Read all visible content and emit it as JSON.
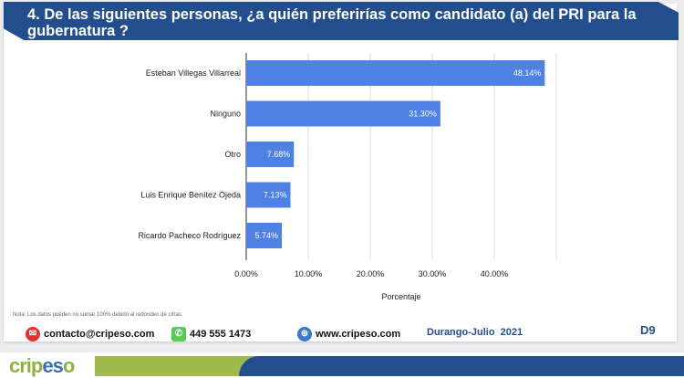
{
  "header": {
    "title": "4. De las siguientes personas, ¿a quién preferirías como candidato (a) del PRI para la gubernatura ?"
  },
  "chart_data": {
    "type": "bar",
    "orientation": "horizontal",
    "categories": [
      "Esteban Villegas Villarreal",
      "Ninguno",
      "Otro",
      "Luis Enrique Benítez Ojeda",
      "Ricardo Pacheco Rodríguez"
    ],
    "values": [
      48.14,
      31.3,
      7.68,
      7.13,
      5.74
    ],
    "labels": [
      "48.14%",
      "31.30%",
      "7.68%",
      "7.13%",
      "5.74%"
    ],
    "xlabel": "Porcentaje",
    "xticks": [
      "0.00%",
      "10.00%",
      "20.00%",
      "30.00%",
      "40.00%"
    ],
    "xlim": [
      0,
      50
    ],
    "bar_color": "#4f81e3",
    "grid": true
  },
  "note": "Nota: Los datos pueden no sumar 100% debido al redondeo de cifras.",
  "footer": {
    "email": "contacto@cripeso.com",
    "phone": "449 555 1473",
    "web": "www.cripeso.com",
    "place_date": "Durango-Julio  2021",
    "page": "D9"
  },
  "brand": {
    "logo": "cripeso"
  }
}
